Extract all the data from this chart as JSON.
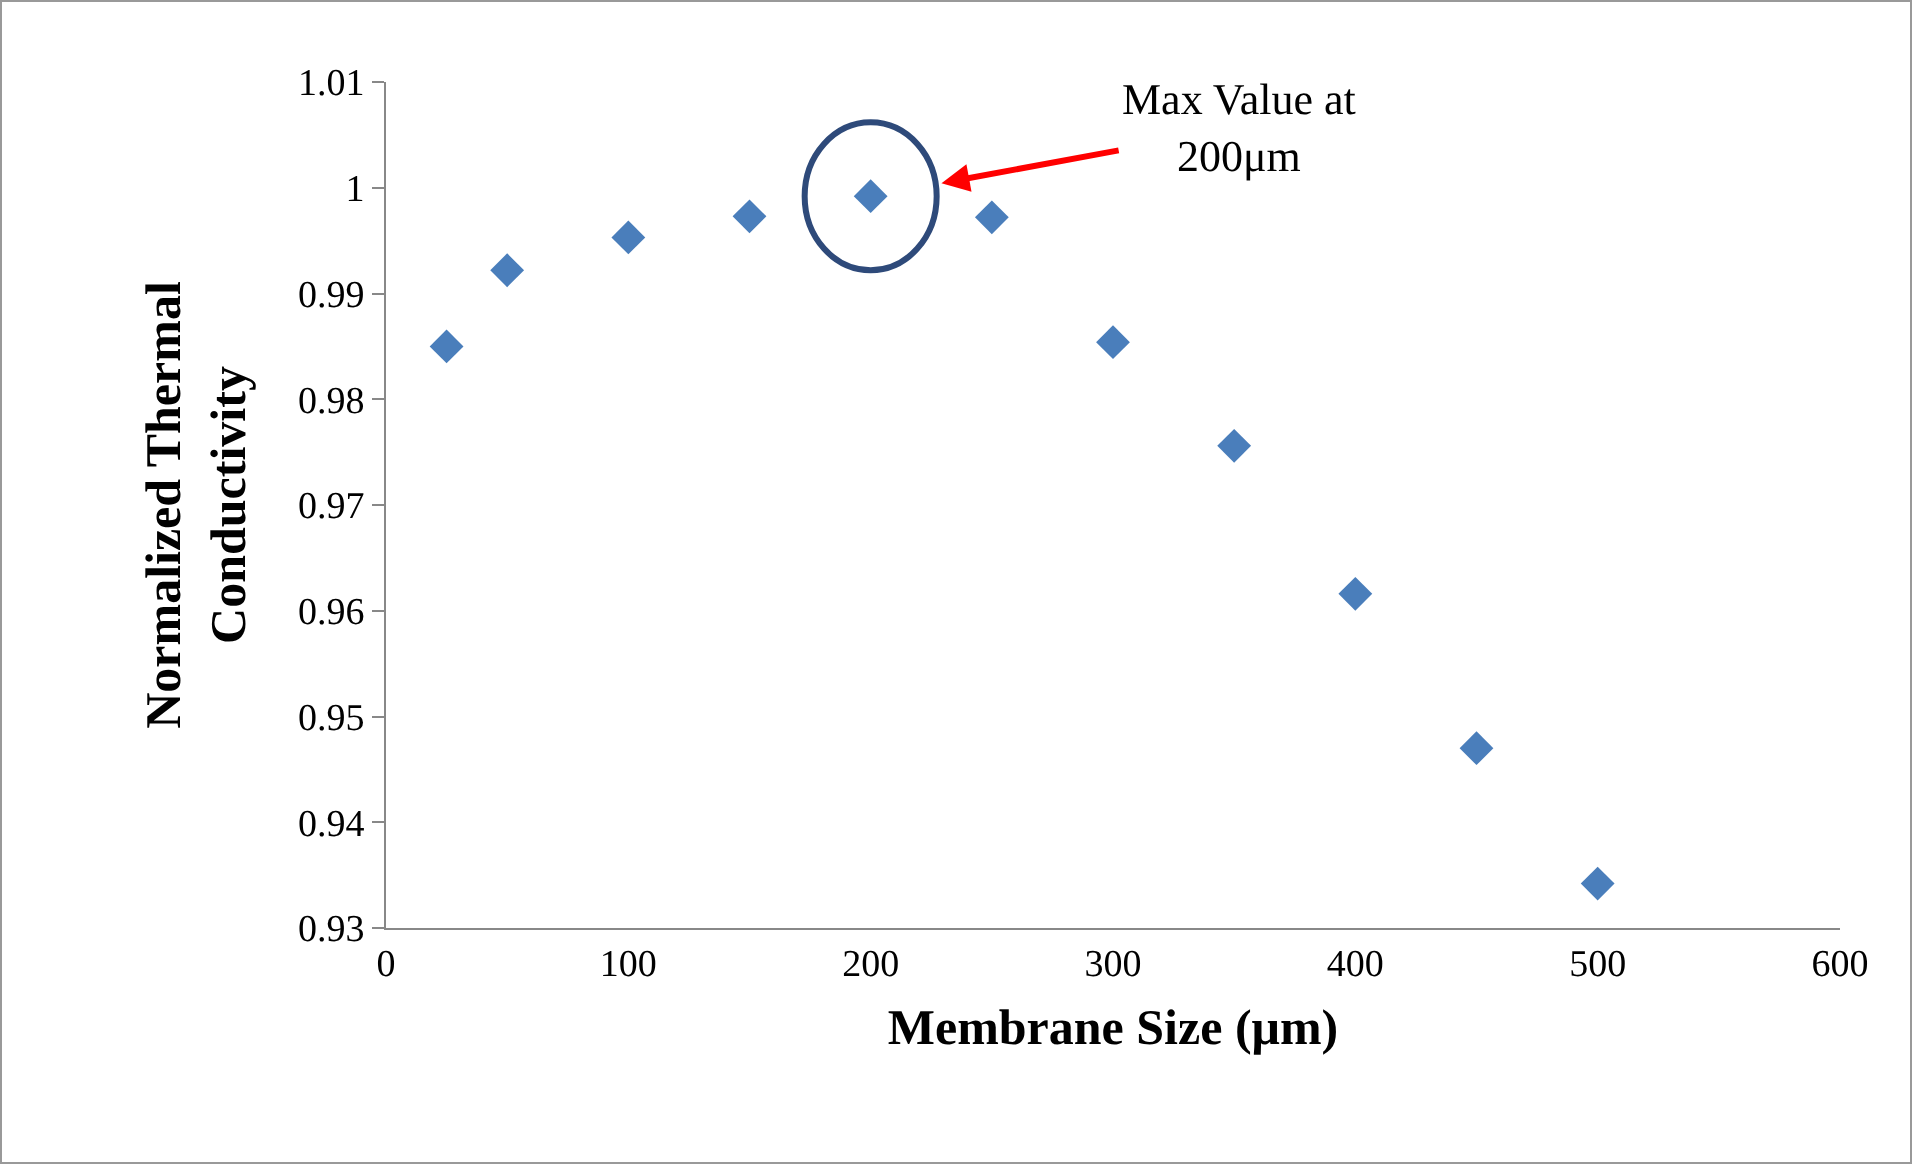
{
  "chart_data": {
    "type": "scatter",
    "xlabel": "Membrane Size (μm)",
    "ylabel": "Normalized Thermal\nConductivity",
    "x": [
      25,
      50,
      100,
      150,
      200,
      250,
      300,
      350,
      400,
      450,
      500
    ],
    "series": [
      {
        "color": "#4a7ebb",
        "values": [
          0.985,
          0.9922,
          0.9953,
          0.9973,
          0.9992,
          0.9972,
          0.9854,
          0.9756,
          0.9616,
          0.947,
          0.9342
        ]
      }
    ],
    "xlim": [
      0,
      600
    ],
    "xticks": [
      0,
      100,
      200,
      300,
      400,
      500,
      600
    ],
    "ylim": [
      0.93,
      1.01
    ],
    "yticks": [
      0.93,
      0.94,
      0.95,
      0.96,
      0.97,
      0.98,
      0.99,
      {
        "value": 1,
        "label": "1"
      },
      1.01
    ],
    "marker": "diamond",
    "annotations": [
      {
        "text": "Max Value at\n200μm",
        "x": 200,
        "y": 0.9992
      }
    ]
  }
}
